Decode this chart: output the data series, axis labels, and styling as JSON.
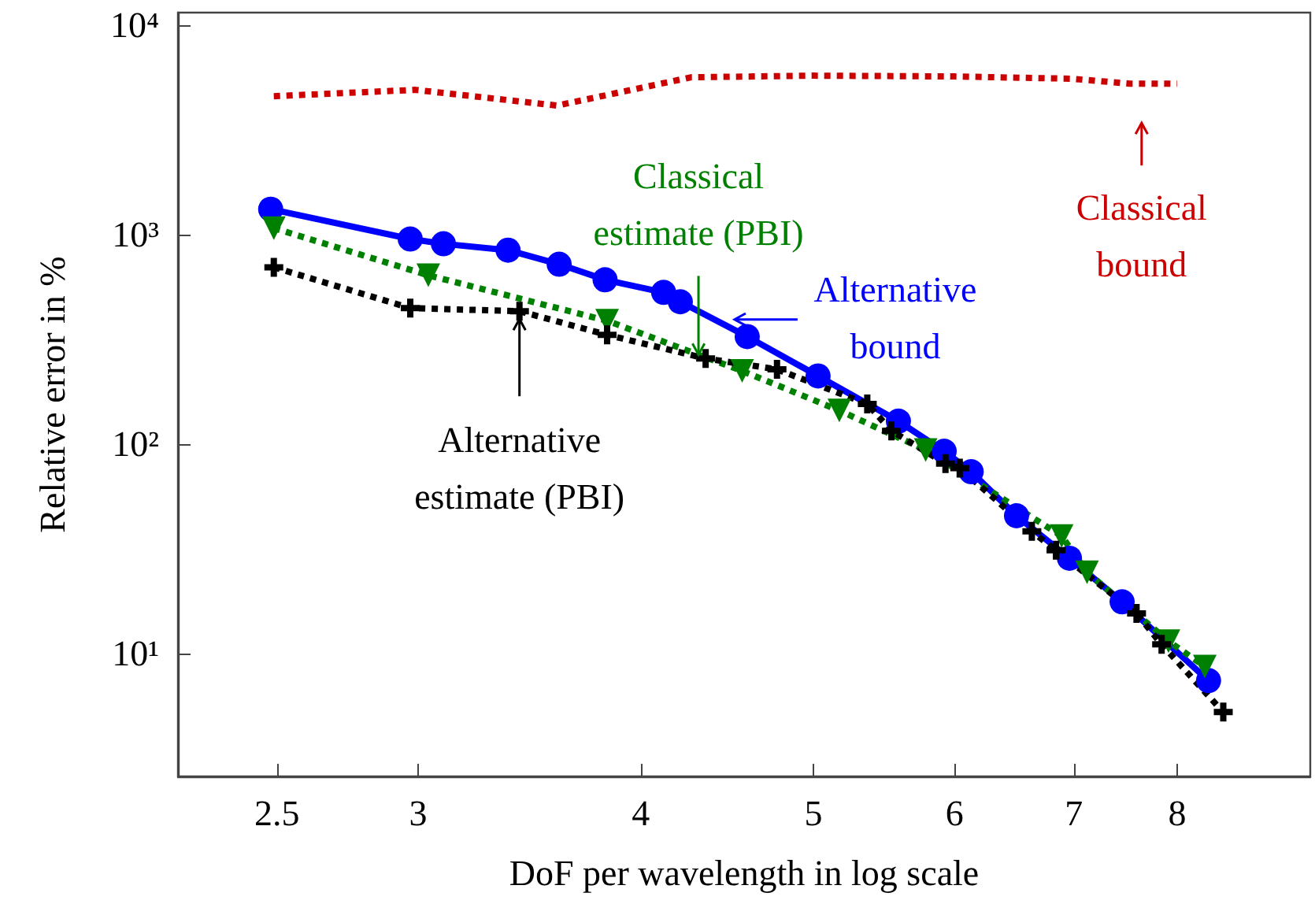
{
  "chart_data": {
    "type": "line",
    "xlabel": "DoF per wavelength in log scale",
    "ylabel": "Relative error in %",
    "log": "xy",
    "grid": false,
    "xlim": [
      2.2,
      9.5
    ],
    "ylim": [
      2.6,
      11500
    ],
    "xticks": [
      2.5,
      3,
      4,
      5,
      6,
      7,
      8
    ],
    "yticks": [
      {
        "value": 10,
        "label": "10¹"
      },
      {
        "value": 100,
        "label": "10²"
      },
      {
        "value": 1000,
        "label": "10³"
      },
      {
        "value": 10000,
        "label": "10⁴"
      }
    ],
    "series": [
      {
        "color": "#cc0000",
        "marker": "none",
        "line_style": "dotted",
        "x": [
          2.49,
          2.99,
          3.59,
          4.27,
          5.0,
          6.0,
          6.98,
          7.52,
          8.0
        ],
        "values": [
          4590,
          4920,
          4140,
          5650,
          5750,
          5700,
          5560,
          5270,
          5270
        ]
      },
      {
        "color": "#0000ff",
        "marker": "circle",
        "line_style": "solid",
        "x": [
          2.48,
          2.97,
          3.1,
          3.37,
          3.6,
          3.82,
          4.12,
          4.21,
          4.59,
          5.03,
          5.58,
          5.92,
          6.13,
          6.5,
          6.96,
          7.45,
          8.33
        ],
        "values": [
          1325,
          955,
          906,
          845,
          724,
          610,
          531,
          479,
          327,
          212,
          129,
          92.7,
          74,
          45.6,
          28.6,
          17.7,
          7.45
        ]
      },
      {
        "color": "#008000",
        "marker": "triangle",
        "line_style": "dotted",
        "x": [
          2.49,
          3.04,
          3.83,
          4.56,
          5.17,
          5.78,
          6.89,
          7.12,
          7.91,
          8.29
        ],
        "values": [
          1076,
          641,
          389,
          224,
          145,
          94,
          36.5,
          24.5,
          11.5,
          8.7
        ]
      },
      {
        "color": "#000000",
        "marker": "cross",
        "line_style": "dotted",
        "x": [
          2.49,
          2.97,
          3.42,
          3.83,
          4.35,
          4.77,
          5.36,
          5.53,
          5.93,
          6.04,
          6.63,
          6.84,
          7.59,
          7.84,
          8.49
        ],
        "values": [
          700,
          447,
          432,
          333,
          257,
          228,
          156,
          116,
          81,
          77,
          38.4,
          31.2,
          15.6,
          11.1,
          5.27
        ]
      }
    ],
    "annotations": [
      {
        "text": "Classical\nestimate (PBI)",
        "x": 4.31,
        "y": 268
      },
      {
        "text": "Alternative\nbound",
        "x": 4.47,
        "y": 368
      },
      {
        "text": "Classical\nbound",
        "x": 7.64,
        "y": 5270
      },
      {
        "text": "Alternative\nestimate (PBI)",
        "x": 3.42,
        "y": 432
      }
    ]
  }
}
